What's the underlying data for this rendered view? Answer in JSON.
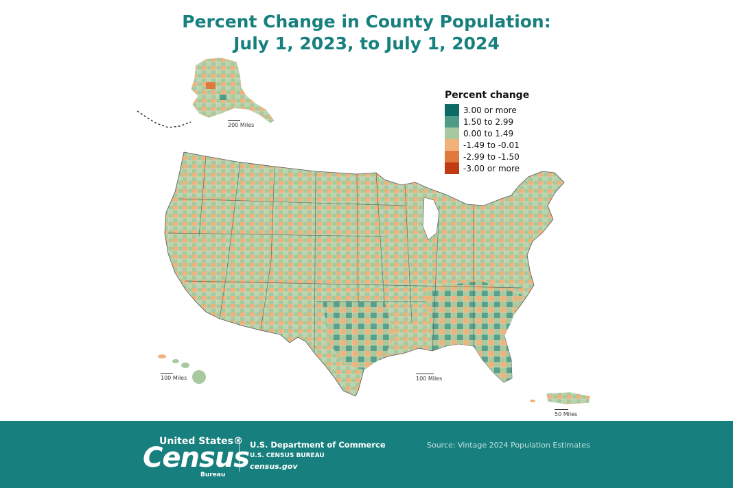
{
  "title": {
    "line1": "Percent Change in County Population:",
    "line2": "July 1, 2023, to July 1, 2024"
  },
  "legend": {
    "title": "Percent change",
    "items": [
      {
        "label": "3.00 or more",
        "color": "#0d6b66"
      },
      {
        "label": "1.50 to 2.99",
        "color": "#4e9b87"
      },
      {
        "label": "0.00 to 1.49",
        "color": "#a8c9a0"
      },
      {
        "label": "-1.49 to -0.01",
        "color": "#f1b27a"
      },
      {
        "label": "-2.99 to -1.50",
        "color": "#df7a3c"
      },
      {
        "label": "-3.00 or more",
        "color": "#c23a12"
      }
    ]
  },
  "scales": {
    "alaska": "200 Miles",
    "hawaii": "100 Miles",
    "conus": "100 Miles",
    "puerto_rico": "50 Miles"
  },
  "footer": {
    "logo_top": "United States®",
    "logo_main": "Census",
    "logo_bottom": "Bureau",
    "dept": "U.S. Department of Commerce",
    "bureau": "U.S. CENSUS BUREAU",
    "website": "census.gov",
    "source": "Source: Vintage 2024 Population Estimates",
    "background": "#17807e"
  }
}
